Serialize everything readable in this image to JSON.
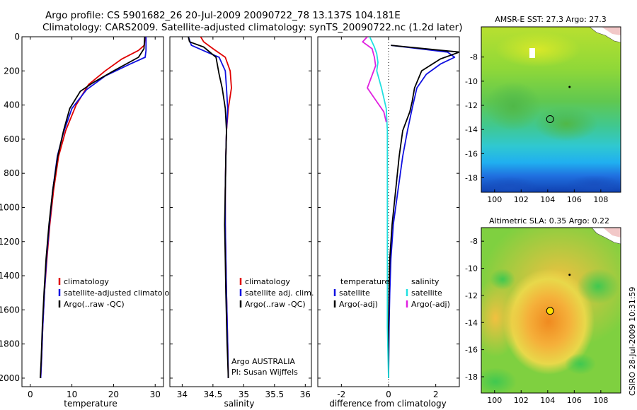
{
  "header": {
    "line1": "Argo profile: CS 5901682_26 20-Jul-2009 20090722_78 13.137S 104.181E",
    "line2": "Climatology: CARS2009. Satellite-adjusted climatology: synTS_20090722.nc (1.2d later)"
  },
  "footer": {
    "credit": "CSIRO 28-Jul-2009 10:31:59"
  },
  "colors": {
    "climatology": "#e00000",
    "satellite": "#1010e0",
    "argo": "#000000",
    "sal_satellite": "#20e0e0",
    "sal_argo": "#e020e0"
  },
  "chart_data": [
    {
      "type": "line",
      "xlabel": "temperature",
      "ylabel": "",
      "xlim": [
        -2,
        32
      ],
      "ylim": [
        2050,
        0
      ],
      "xticks": [
        0,
        10,
        20,
        30
      ],
      "yticks": [
        0,
        200,
        400,
        600,
        800,
        1000,
        1200,
        1400,
        1600,
        1800,
        2000
      ],
      "legend": [
        {
          "label": "climatology",
          "color": "#e00000"
        },
        {
          "label": "satellite-adjusted climatolog",
          "color": "#1010e0"
        },
        {
          "label": "Argo(..raw -QC)",
          "color": "#000000"
        }
      ],
      "legend_position": "lower-right",
      "series": [
        {
          "key": "clim",
          "color": "#e00000",
          "x": [
            27.6,
            27.4,
            26,
            22,
            18,
            14,
            11,
            8.5,
            6.8,
            5.6,
            4.7,
            4.0,
            3.4,
            3.0,
            2.7,
            2.5
          ],
          "y": [
            0,
            50,
            80,
            130,
            200,
            280,
            400,
            550,
            700,
            900,
            1100,
            1300,
            1500,
            1700,
            1900,
            2000
          ]
        },
        {
          "key": "sat",
          "color": "#1010e0",
          "x": [
            27.8,
            27.8,
            27.6,
            24,
            18,
            13.5,
            10,
            8,
            6.5,
            5.4,
            4.6,
            3.9,
            3.4,
            3.0,
            2.7,
            2.5
          ],
          "y": [
            0,
            80,
            120,
            160,
            230,
            310,
            420,
            560,
            700,
            900,
            1100,
            1300,
            1500,
            1700,
            1900,
            2000
          ]
        },
        {
          "key": "argo",
          "color": "#000000",
          "x": [
            27.5,
            27.3,
            26,
            20,
            15,
            12,
            9.5,
            8,
            6.6,
            5.4,
            4.5,
            3.8,
            3.3,
            2.9,
            2.6,
            2.4
          ],
          "y": [
            0,
            70,
            120,
            200,
            270,
            320,
            420,
            550,
            700,
            900,
            1100,
            1300,
            1500,
            1700,
            1900,
            2000
          ]
        }
      ]
    },
    {
      "type": "line",
      "xlabel": "salinity",
      "xlim": [
        33.8,
        36.1
      ],
      "ylim": [
        2050,
        0
      ],
      "xticks": [
        34,
        34.5,
        35,
        35.5,
        36
      ],
      "yticks": [
        0,
        200,
        400,
        600,
        800,
        1000,
        1200,
        1400,
        1600,
        1800,
        2000
      ],
      "legend": [
        {
          "label": "climatology",
          "color": "#e00000"
        },
        {
          "label": "satellite adj. clim.",
          "color": "#1010e0"
        },
        {
          "label": "Argo(..raw -QC)",
          "color": "#000000"
        }
      ],
      "legend_position": "lower-right",
      "annotation": [
        "Argo AUSTRALIA",
        "PI: Susan Wijffels"
      ],
      "series": [
        {
          "key": "clim",
          "color": "#e00000",
          "x": [
            34.3,
            34.35,
            34.5,
            34.7,
            34.78,
            34.8,
            34.75,
            34.72,
            34.71,
            34.7,
            34.7,
            34.71,
            34.72,
            34.74,
            34.75
          ],
          "y": [
            0,
            30,
            70,
            120,
            200,
            300,
            420,
            550,
            700,
            900,
            1100,
            1300,
            1500,
            1800,
            2000
          ]
        },
        {
          "key": "sat",
          "color": "#1010e0",
          "x": [
            34.1,
            34.15,
            34.4,
            34.6,
            34.7,
            34.72,
            34.74,
            34.72,
            34.71,
            34.7,
            34.7,
            34.71,
            34.72,
            34.74,
            34.75
          ],
          "y": [
            0,
            50,
            90,
            120,
            200,
            300,
            420,
            550,
            700,
            900,
            1100,
            1300,
            1500,
            1800,
            2000
          ]
        },
        {
          "key": "argo",
          "color": "#000000",
          "x": [
            34.1,
            34.12,
            34.35,
            34.55,
            34.6,
            34.65,
            34.7,
            34.72,
            34.71,
            34.7,
            34.69,
            34.7,
            34.71,
            34.73,
            34.75
          ],
          "y": [
            0,
            30,
            60,
            120,
            220,
            300,
            420,
            550,
            700,
            900,
            1100,
            1300,
            1500,
            1800,
            2000
          ]
        }
      ]
    },
    {
      "type": "line",
      "xlabel": "difference from climatology",
      "xlim": [
        -3,
        3
      ],
      "ylim": [
        2050,
        0
      ],
      "xticks": [
        -2,
        0,
        2
      ],
      "yticks": [
        0,
        200,
        400,
        600,
        800,
        1000,
        1200,
        1400,
        1600,
        1800,
        2000
      ],
      "legend_columns": [
        {
          "heading": "temperature",
          "entries": [
            {
              "label": "satellite",
              "color": "#1010e0"
            },
            {
              "label": "Argo(-adj)",
              "color": "#000000"
            }
          ]
        },
        {
          "heading": "salinity",
          "entries": [
            {
              "label": "satellite",
              "color": "#20e0e0"
            },
            {
              "label": "Argo(-adj)",
              "color": "#e020e0"
            }
          ]
        }
      ],
      "legend_position": "lower-right",
      "series": [
        {
          "key": "temp_sat",
          "color": "#1010e0",
          "x": [
            0.1,
            2.5,
            2.8,
            2.2,
            1.6,
            1.2,
            1.0,
            0.8,
            0.6,
            0.4,
            0.2,
            0.1,
            0.05,
            0.02,
            0
          ],
          "y": [
            50,
            90,
            120,
            160,
            220,
            300,
            420,
            550,
            700,
            900,
            1100,
            1300,
            1500,
            1700,
            2000
          ]
        },
        {
          "key": "temp_argo",
          "color": "#000000",
          "x": [
            0.1,
            3.0,
            2.2,
            1.4,
            1.1,
            1.0,
            0.9,
            0.6,
            0.45,
            0.3,
            0.15,
            0.05,
            0.02,
            0,
            0
          ],
          "y": [
            50,
            90,
            130,
            200,
            300,
            380,
            440,
            550,
            700,
            900,
            1100,
            1300,
            1500,
            1700,
            2000
          ]
        },
        {
          "key": "sal_sat",
          "color": "#20e0e0",
          "x": [
            -0.8,
            -0.6,
            -0.5,
            -0.45,
            -0.5,
            -0.3,
            -0.1,
            -0.05,
            -0.05,
            -0.05,
            -0.05,
            -0.05,
            -0.05,
            -0.05,
            0
          ],
          "y": [
            0,
            60,
            100,
            150,
            200,
            300,
            420,
            550,
            700,
            900,
            1100,
            1300,
            1500,
            1700,
            2000
          ]
        },
        {
          "key": "sal_argo",
          "color": "#e020e0",
          "x": [
            -0.9,
            -1.1,
            -0.7,
            -0.6,
            -0.55,
            -0.9,
            -0.5,
            -0.2,
            -0.1
          ],
          "y": [
            0,
            30,
            70,
            120,
            170,
            300,
            380,
            440,
            500
          ]
        }
      ]
    },
    {
      "type": "heatmap",
      "title": "AMSR-E SST: 27.3 Argo: 27.3",
      "xlim": [
        99,
        109.5
      ],
      "ylim": [
        -19.2,
        -5.5
      ],
      "xticks": [
        100,
        102,
        104,
        106,
        108
      ],
      "yticks": [
        -8,
        -10,
        -12,
        -14,
        -16,
        -18
      ],
      "argo_position": [
        104.18,
        -13.14
      ]
    },
    {
      "type": "heatmap",
      "title": "Altimetric SLA: 0.35 Argo: 0.22",
      "xlim": [
        99,
        109.5
      ],
      "ylim": [
        -19.2,
        -7
      ],
      "xticks": [
        100,
        102,
        104,
        106,
        108
      ],
      "yticks": [
        -8,
        -10,
        -12,
        -14,
        -16,
        -18
      ],
      "argo_position": [
        104.18,
        -13.14
      ]
    }
  ]
}
